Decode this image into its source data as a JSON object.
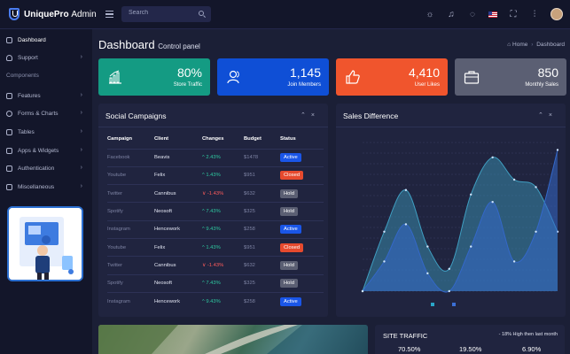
{
  "brand": {
    "name": "UniquePro",
    "suffix": "Admin"
  },
  "search": {
    "placeholder": "Search"
  },
  "topbar": {
    "icons": [
      "hamburger-icon",
      "search-icon",
      "sun-icon",
      "bell-icon",
      "chat-icon",
      "us-flag-icon",
      "fullscreen-icon",
      "sliders-icon",
      "avatar"
    ]
  },
  "sidebar": {
    "items": [
      {
        "label": "Dashboard",
        "icon": "dashboard-icon",
        "active": true
      },
      {
        "label": "Support",
        "icon": "headset-icon"
      },
      {
        "label": "Features",
        "icon": "features-icon"
      },
      {
        "label": "Forms & Charts",
        "icon": "chart-icon"
      },
      {
        "label": "Tables",
        "icon": "table-icon"
      },
      {
        "label": "Apps & Widgets",
        "icon": "apps-icon"
      },
      {
        "label": "Authentication",
        "icon": "lock-icon"
      },
      {
        "label": "Miscellaneous",
        "icon": "misc-icon"
      }
    ],
    "section": "Components"
  },
  "page": {
    "title": "Dashboard",
    "subtitle": "Control panel"
  },
  "breadcrumb": {
    "home": "Home",
    "sep": "›",
    "current": "Dashboard"
  },
  "stats": [
    {
      "value": "80%",
      "label": "Store Traffic",
      "color": "#149b83",
      "icon": "bar-chart-icon"
    },
    {
      "value": "1,145",
      "label": "Join Members",
      "color": "#0f4fd6",
      "icon": "users-icon"
    },
    {
      "value": "4,410",
      "label": "User Likes",
      "color": "#f0552d",
      "icon": "thumbs-up-icon"
    },
    {
      "value": "850",
      "label": "Monthly Sales",
      "color": "#5b5f73",
      "icon": "briefcase-icon"
    }
  ],
  "campaigns": {
    "title": "Social Campaigns",
    "headers": [
      "Campaign",
      "Client",
      "Changes",
      "Budget",
      "Status"
    ],
    "rows": [
      {
        "campaign": "Facebook",
        "client": "Beavis",
        "change": "2.43%",
        "dir": "up",
        "budget": "$1478",
        "status": "Active"
      },
      {
        "campaign": "Youtube",
        "client": "Felix",
        "change": "1.43%",
        "dir": "up",
        "budget": "$951",
        "status": "Closed"
      },
      {
        "campaign": "Twitter",
        "client": "Cannibus",
        "change": "-1.43%",
        "dir": "down",
        "budget": "$632",
        "status": "Hold"
      },
      {
        "campaign": "Spotify",
        "client": "Neosoft",
        "change": "7.43%",
        "dir": "up",
        "budget": "$325",
        "status": "Hold"
      },
      {
        "campaign": "Instagram",
        "client": "Hencework",
        "change": "9.43%",
        "dir": "up",
        "budget": "$258",
        "status": "Active"
      },
      {
        "campaign": "Youtube",
        "client": "Felix",
        "change": "1.43%",
        "dir": "up",
        "budget": "$951",
        "status": "Closed"
      },
      {
        "campaign": "Twitter",
        "client": "Cannibus",
        "change": "-1.43%",
        "dir": "down",
        "budget": "$632",
        "status": "Hold"
      },
      {
        "campaign": "Spotify",
        "client": "Neosoft",
        "change": "7.43%",
        "dir": "up",
        "budget": "$325",
        "status": "Hold"
      },
      {
        "campaign": "Instagram",
        "client": "Hencework",
        "change": "9.43%",
        "dir": "up",
        "budget": "$258",
        "status": "Active"
      }
    ]
  },
  "status_colors": {
    "Active": "#1a56e8",
    "Closed": "#e64a2e",
    "Hold": "#5b5f73"
  },
  "sales": {
    "title": "Sales Difference",
    "legend_colors": [
      "#2aa6c8",
      "#3b6fd6"
    ]
  },
  "chart_data": {
    "type": "area",
    "x": [
      0,
      1,
      2,
      3,
      4,
      5,
      6,
      7,
      8,
      9
    ],
    "series": [
      {
        "color": "#3f9fc2",
        "values": [
          0,
          40,
          68,
          30,
          15,
          65,
          90,
          75,
          70,
          40
        ]
      },
      {
        "color": "#3468c9",
        "values": [
          0,
          20,
          45,
          12,
          0,
          30,
          60,
          20,
          40,
          95
        ]
      }
    ],
    "ylim": [
      0,
      100
    ],
    "grid": true,
    "legend": "bottom-center"
  },
  "traffic": {
    "title": "SITE TRAFFIC",
    "note": "- 18% High then last month",
    "values": [
      "70.50%",
      "19.50%",
      "6.90%"
    ]
  }
}
